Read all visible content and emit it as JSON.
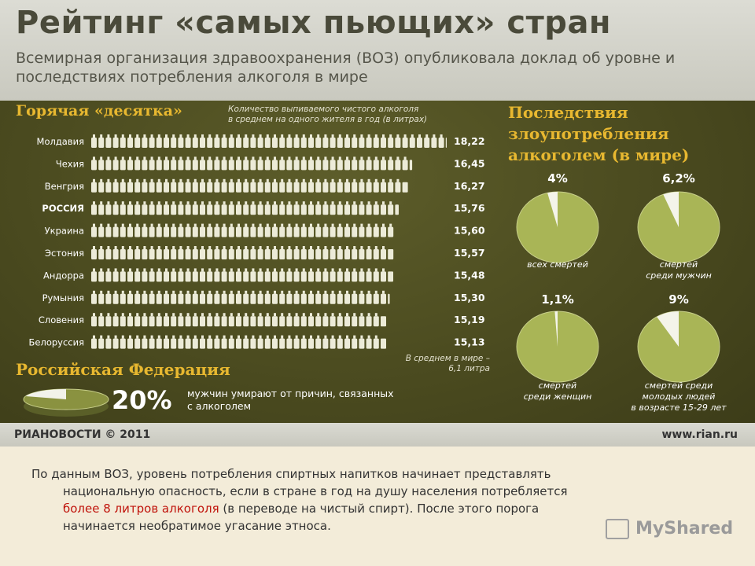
{
  "poster": {
    "title": "Рейтинг «самых пьющих» стран",
    "subtitle": "Всемирная организация здравоохранения (ВОЗ) опубликовала доклад об уровне и последствиях потребления алкоголя в мире",
    "top10_heading": "Горячая «десятка»",
    "top10_note_line1": "Количество выпиваемого чистого алкоголя",
    "top10_note_line2": "в среднем на одного жителя в год (в литрах)",
    "world_avg_line1": "В среднем в мире –",
    "world_avg_line2": "6,1 литра",
    "consequences_title_line1": "Последствия",
    "consequences_title_line2": "злоупотребления",
    "consequences_title_line3": "алкоголем (в мире)",
    "rf_heading": "Российская Федерация",
    "rf_pct": "20%",
    "rf_text_line1": "мужчин умирают от причин, связанных",
    "rf_text_line2": "с алкоголем",
    "footer_left": "РИАНОВОСТИ © 2011",
    "footer_right": "www.rian.ru"
  },
  "chart_data": [
    {
      "type": "bar",
      "categories": [
        "Молдавия",
        "Чехия",
        "Венгрия",
        "РОССИЯ",
        "Украина",
        "Эстония",
        "Андорра",
        "Румыния",
        "Словения",
        "Белоруссия"
      ],
      "values": [
        18.22,
        16.45,
        16.27,
        15.76,
        15.6,
        15.57,
        15.48,
        15.3,
        15.19,
        15.13
      ],
      "value_labels": [
        "18,22",
        "16,45",
        "16,27",
        "15,76",
        "15,60",
        "15,57",
        "15,48",
        "15,30",
        "15,19",
        "15,13"
      ],
      "title": "Горячая «десятка»",
      "colors": {
        "bottle": "#ecebd8",
        "label": "#ffffff",
        "value": "#ffffff"
      }
    },
    {
      "type": "pie",
      "charts": [
        {
          "value": 4,
          "pct": "4%",
          "caption": [
            "всех смертей"
          ]
        },
        {
          "value": 6.2,
          "pct": "6,2%",
          "caption": [
            "смертей",
            "среди мужчин"
          ]
        },
        {
          "value": 1.1,
          "pct": "1,1%",
          "caption": [
            "смертей",
            "среди женщин"
          ]
        },
        {
          "value": 9,
          "pct": "9%",
          "caption": [
            "смертей среди",
            "молодых людей",
            "в возрасте 15-29 лет"
          ]
        }
      ],
      "colors": {
        "pie": "#a9b556",
        "slice": "#f4f4ea"
      }
    },
    {
      "type": "pie",
      "title": "Российская Федерация",
      "value": 20,
      "colors": {
        "pie": "#8a9240",
        "slice": "#f2f2ea"
      }
    }
  ],
  "caption": {
    "line1": "По данным ВОЗ, уровень потребления спиртных напитков начинает представлять",
    "line2": "национальную опасность, если в стране в год на душу населения потребляется",
    "line3_red": "более 8 литров алкоголя",
    "line3_rest": " (в переводе на чистый спирт). После этого порога",
    "line4": "начинается необратимое угасание этноса."
  },
  "watermark": "MyShared"
}
